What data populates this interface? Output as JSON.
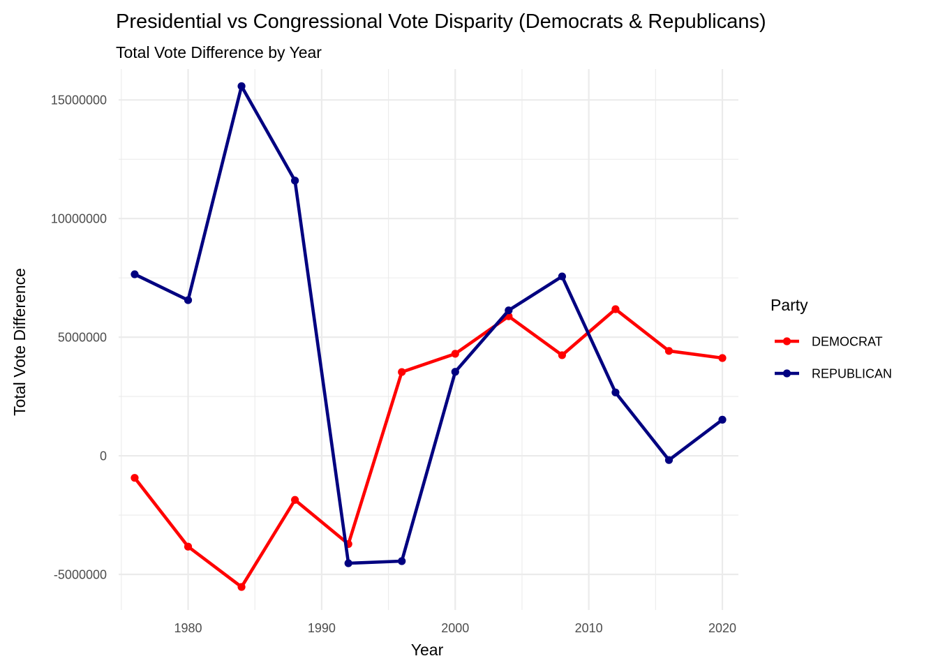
{
  "chart_data": {
    "type": "line",
    "title": "Presidential vs Congressional Vote Disparity (Democrats & Republicans)",
    "subtitle": "Total Vote Difference by Year",
    "xlabel": "Year",
    "ylabel": "Total Vote Difference",
    "x": [
      1976,
      1980,
      1984,
      1988,
      1992,
      1996,
      2000,
      2004,
      2008,
      2012,
      2016,
      2020
    ],
    "x_ticks": [
      "1980",
      "1990",
      "2000",
      "2010",
      "2020"
    ],
    "y_ticks": [
      "-5000000",
      "0",
      "5000000",
      "10000000",
      "15000000"
    ],
    "xlim": [
      1974.8,
      2021.2
    ],
    "ylim": [
      -6500000,
      16300000
    ],
    "grid": true,
    "legend": {
      "title": "Party",
      "placement": "right"
    },
    "series": [
      {
        "name": "DEMOCRAT",
        "color": "#ff0000",
        "values": [
          -930000,
          -3830000,
          -5530000,
          -1860000,
          -3720000,
          3530000,
          4300000,
          5880000,
          4240000,
          6180000,
          4420000,
          4120000
        ]
      },
      {
        "name": "REPUBLICAN",
        "color": "#000080",
        "values": [
          7650000,
          6560000,
          15580000,
          11600000,
          -4530000,
          -4440000,
          3540000,
          6130000,
          7560000,
          2670000,
          -180000,
          1520000
        ]
      }
    ]
  }
}
